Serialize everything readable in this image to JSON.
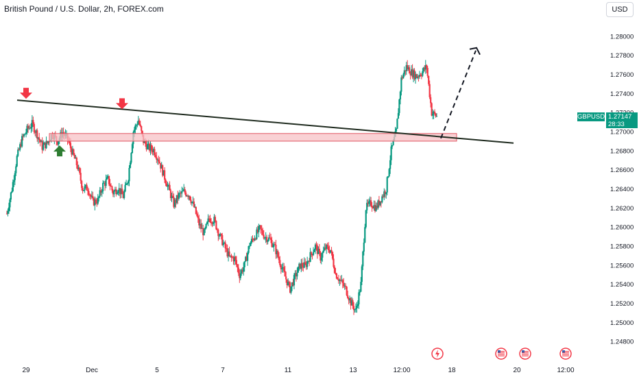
{
  "header": {
    "title": "British Pound / U.S. Dollar, 2h, FOREX.com"
  },
  "currency_button": {
    "label": "USD"
  },
  "price_tag": {
    "symbol": "GBPUSD",
    "price": "1.27147",
    "countdown": "28:33"
  },
  "colors": {
    "up": "#089981",
    "down": "#f23645",
    "trendline": "#1e2a1e",
    "zone_fill": "#f7c1c6",
    "zone_border": "#e05562",
    "marker_down": "#f23645",
    "marker_up": "#2e7d32"
  },
  "event_icons": [
    "lightning-icon",
    "us-flag-icon",
    "us-flag-icon",
    "us-flag-icon"
  ],
  "chart_data": {
    "type": "candlestick",
    "title": "British Pound / U.S. Dollar, 2h, FOREX.com",
    "ylim": [
      1.247,
      1.2815
    ],
    "yticks": [
      "1.28000",
      "1.27800",
      "1.27600",
      "1.27400",
      "1.27200",
      "1.27000",
      "1.26800",
      "1.26600",
      "1.26400",
      "1.26200",
      "1.26000",
      "1.25800",
      "1.25600",
      "1.25400",
      "1.25200",
      "1.25000",
      "1.24800"
    ],
    "xticks": [
      "29",
      "Dec",
      "5",
      "7",
      "11",
      "13",
      "12:00",
      "18",
      "20",
      "12:00"
    ],
    "price_series": [
      1.2614,
      1.264,
      1.2673,
      1.2692,
      1.2702,
      1.2708,
      1.2697,
      1.2684,
      1.2688,
      1.2698,
      1.269,
      1.2699,
      1.2692,
      1.2677,
      1.2663,
      1.264,
      1.2641,
      1.2626,
      1.2628,
      1.2644,
      1.265,
      1.2636,
      1.2641,
      1.2632,
      1.2652,
      1.27,
      1.2712,
      1.269,
      1.2683,
      1.2681,
      1.2671,
      1.2655,
      1.264,
      1.2624,
      1.2633,
      1.2637,
      1.2634,
      1.2621,
      1.2603,
      1.2593,
      1.2609,
      1.2607,
      1.2592,
      1.258,
      1.2568,
      1.2567,
      1.255,
      1.256,
      1.2582,
      1.259,
      1.2598,
      1.259,
      1.2587,
      1.2578,
      1.2563,
      1.2548,
      1.2535,
      1.2548,
      1.256,
      1.2559,
      1.257,
      1.258,
      1.2568,
      1.2578,
      1.2576,
      1.2551,
      1.2543,
      1.2535,
      1.2521,
      1.2512,
      1.254,
      1.262,
      1.2625,
      1.262,
      1.263,
      1.264,
      1.268,
      1.27,
      1.2755,
      1.2768,
      1.2762,
      1.2758,
      1.2762,
      1.2768,
      1.272,
      1.2716
    ],
    "horizontal_zone": {
      "from": 1.269,
      "to": 1.2698
    },
    "trendline": {
      "start": [
        "29",
        1.2733
      ],
      "end": [
        "20",
        1.2688
      ]
    },
    "projection": {
      "from": 1.2693,
      "to": 1.2785
    },
    "markers": [
      {
        "type": "down-arrow",
        "near": "29",
        "price": 1.2733
      },
      {
        "type": "up-arrow",
        "near": "29",
        "price": 1.2687
      },
      {
        "type": "down-arrow",
        "near": "Dec",
        "price": 1.2722
      }
    ]
  }
}
